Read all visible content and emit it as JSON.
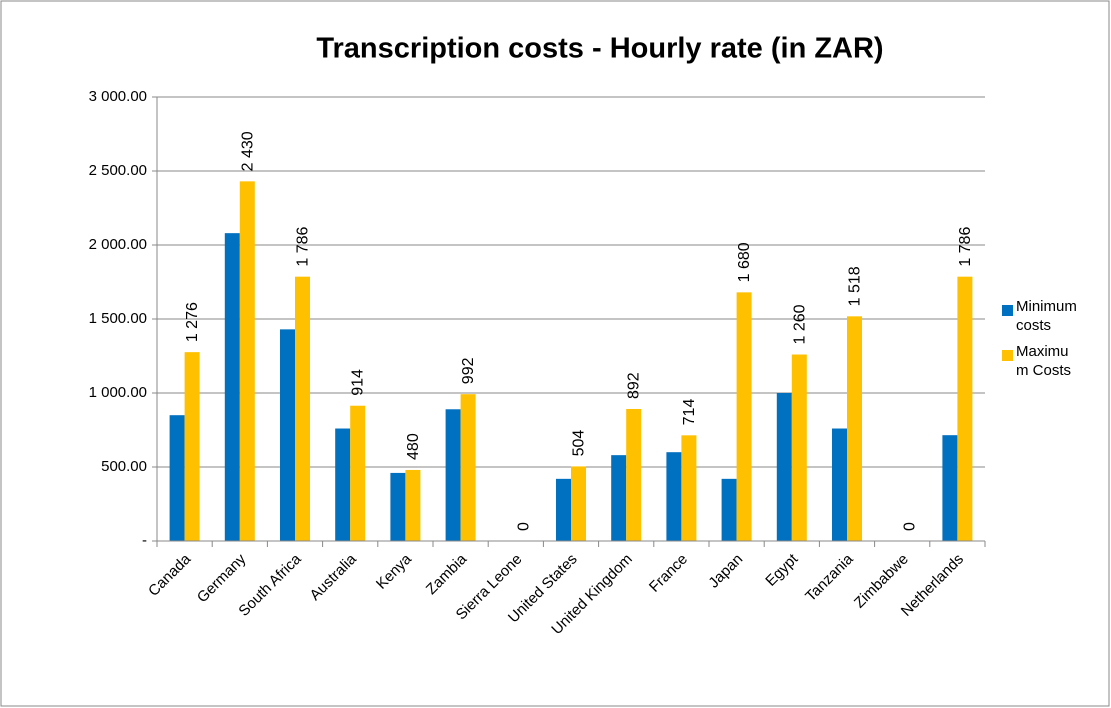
{
  "chart_data": {
    "type": "bar",
    "title": "Transcription costs - Hourly rate (in ZAR)",
    "categories": [
      "Canada",
      "Germany",
      "South Africa",
      "Australia",
      "Kenya",
      "Zambia",
      "Sierra Leone",
      "United States",
      "United Kingdom",
      "France",
      "Japan",
      "Egypt",
      "Tanzania",
      "Zimbabwe",
      "Netherlands"
    ],
    "series": [
      {
        "name": "Minimum costs",
        "color": "#0070c0",
        "values": [
          850,
          2080,
          1430,
          760,
          460,
          890,
          0,
          420,
          580,
          600,
          420,
          1000,
          760,
          0,
          715
        ]
      },
      {
        "name": "Maximum Costs",
        "color": "#ffc000",
        "values": [
          1276,
          2430,
          1786,
          914,
          480,
          992,
          0,
          504,
          892,
          714,
          1680,
          1260,
          1518,
          0,
          1786
        ],
        "value_labels": [
          "1 276",
          "2 430",
          "1 786",
          "914",
          "480",
          "992",
          "0",
          "504",
          "892",
          "714",
          "1 680",
          "1 260",
          "1 518",
          "0",
          "1 786"
        ]
      }
    ],
    "ylim": [
      0,
      3000
    ],
    "yticks": [
      {
        "value": 0,
        "label": "-"
      },
      {
        "value": 500,
        "label": "500.00"
      },
      {
        "value": 1000,
        "label": "1 000.00"
      },
      {
        "value": 1500,
        "label": "1 500.00"
      },
      {
        "value": 2000,
        "label": "2 000.00"
      },
      {
        "value": 2500,
        "label": "2 500.00"
      },
      {
        "value": 3000,
        "label": "3 000.00"
      }
    ],
    "grid": true
  }
}
